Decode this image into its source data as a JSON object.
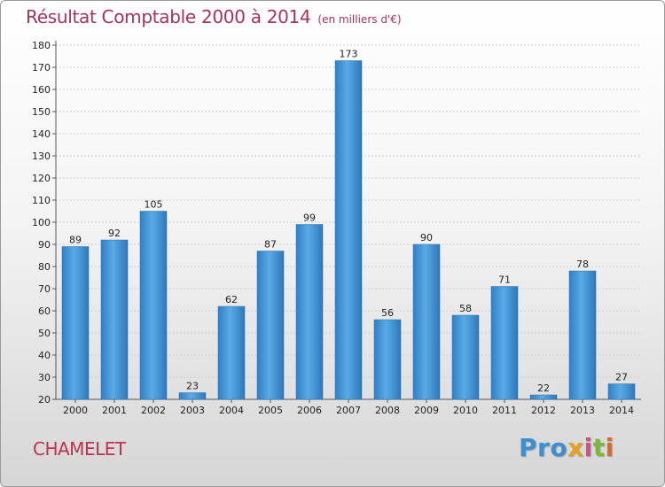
{
  "chart_data": {
    "type": "bar",
    "title": "Résultat Comptable 2000 à 2014",
    "subtitle": "(en milliers d'€)",
    "categories": [
      "2000",
      "2001",
      "2002",
      "2003",
      "2004",
      "2005",
      "2006",
      "2007",
      "2008",
      "2009",
      "2010",
      "2011",
      "2012",
      "2013",
      "2014"
    ],
    "values": [
      89,
      92,
      105,
      23,
      62,
      87,
      99,
      173,
      56,
      90,
      58,
      71,
      22,
      78,
      27
    ],
    "ylim": [
      20,
      180
    ],
    "yticks": [
      20,
      30,
      40,
      50,
      60,
      70,
      80,
      90,
      100,
      110,
      120,
      130,
      140,
      150,
      160,
      170,
      180
    ],
    "xlabel": "",
    "ylabel": "",
    "grid": true,
    "bar_color": "#3a8fd6"
  },
  "commune": "CHAMELET",
  "logo": {
    "p1": "Pro",
    "p2": "x",
    "p3": "i",
    "p4": "t",
    "p5": "i"
  }
}
